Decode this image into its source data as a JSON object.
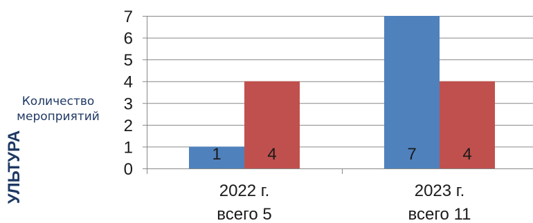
{
  "side_title": "УЛЬТУРА",
  "chart_data": {
    "type": "bar",
    "categories": [
      [
        "2022 г.",
        "всего 5"
      ],
      [
        "2023 г.",
        "всего 11"
      ]
    ],
    "series": [
      {
        "values": [
          1,
          7
        ],
        "color": "#4f81bd"
      },
      {
        "values": [
          4,
          4
        ],
        "color": "#c0504d"
      }
    ],
    "ylabel": [
      "Количество",
      "мероприятий"
    ],
    "ylim": [
      0,
      7
    ],
    "yticks": [
      0,
      1,
      2,
      3,
      4,
      5,
      6,
      7
    ],
    "grid": true,
    "legend": "none",
    "data_labels": true
  }
}
